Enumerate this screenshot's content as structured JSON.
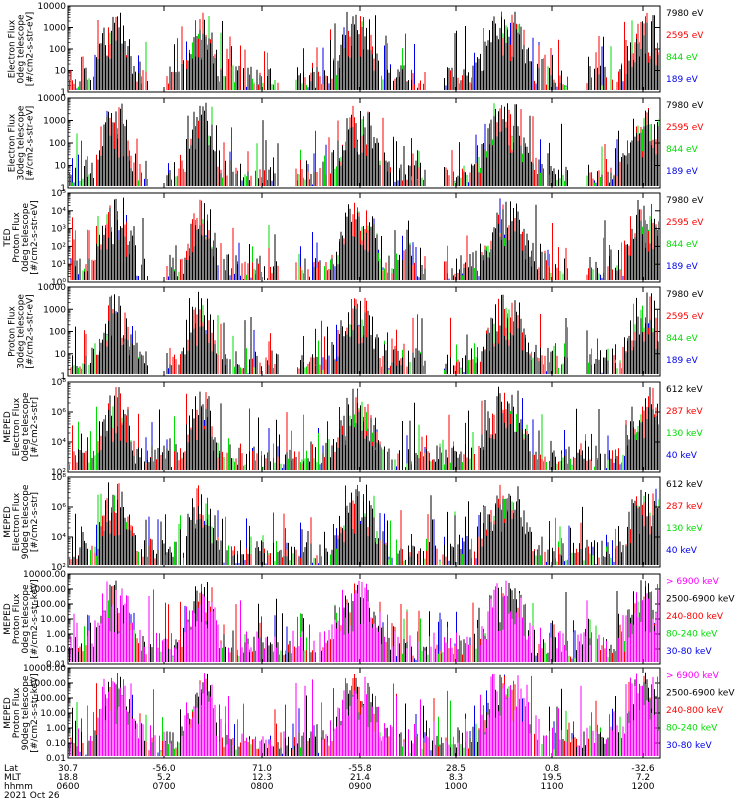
{
  "chart_data": [
    {
      "type": "line",
      "ylabel": [
        "Electron Flux",
        "0deg telescope",
        "[#/cm2-s-str-eV]"
      ],
      "ylog": [
        0,
        4
      ],
      "yticks": [
        "1",
        "10",
        "100",
        "1000",
        "10000"
      ],
      "legend": [
        {
          "label": "7980 eV",
          "color": "#000000"
        },
        {
          "label": "2595 eV",
          "color": "#ff0000"
        },
        {
          "label": "844 eV",
          "color": "#00dd00"
        },
        {
          "label": "189 eV",
          "color": "#0000ee"
        }
      ]
    },
    {
      "type": "line",
      "ylabel": [
        "Electron Flux",
        "30deg telescope",
        "[#/cm2-s-str-eV]"
      ],
      "ylog": [
        0,
        4
      ],
      "yticks": [
        "1",
        "10",
        "100",
        "1000",
        "10000"
      ],
      "legend": [
        {
          "label": "7980 eV",
          "color": "#000000"
        },
        {
          "label": "2595 eV",
          "color": "#ff0000"
        },
        {
          "label": "844 eV",
          "color": "#00dd00"
        },
        {
          "label": "189 eV",
          "color": "#0000ee"
        }
      ]
    },
    {
      "type": "line",
      "ylabel": [
        "TED",
        "Proton Flux",
        "0deg telescope",
        "[#/cm2-s-str-eV]"
      ],
      "ylog": [
        0,
        5
      ],
      "yticks": [
        "10⁰",
        "10¹",
        "10²",
        "10³",
        "10⁴",
        "10⁵"
      ],
      "legend": [
        {
          "label": "7980 eV",
          "color": "#000000"
        },
        {
          "label": "2595 eV",
          "color": "#ff0000"
        },
        {
          "label": "844 eV",
          "color": "#00dd00"
        },
        {
          "label": "189 eV",
          "color": "#0000ee"
        }
      ]
    },
    {
      "type": "line",
      "ylabel": [
        "Proton Flux",
        "30deg telescope",
        "[#/cm2-s-str-eV]"
      ],
      "ylog": [
        0,
        4
      ],
      "yticks": [
        "1",
        "10",
        "100",
        "1000",
        "10000"
      ],
      "legend": [
        {
          "label": "7980 eV",
          "color": "#000000"
        },
        {
          "label": "2595 eV",
          "color": "#ff0000"
        },
        {
          "label": "844 eV",
          "color": "#00dd00"
        },
        {
          "label": "189 eV",
          "color": "#0000ee"
        }
      ]
    },
    {
      "type": "line",
      "ylabel": [
        "MEPED",
        "Electron Flux",
        "0deg telescope",
        "[#/cm2-s-str]"
      ],
      "ylog": [
        2,
        8
      ],
      "yticks": [
        "10²",
        "10⁴",
        "10⁶",
        "10⁸"
      ],
      "legend": [
        {
          "label": "612 keV",
          "color": "#000000"
        },
        {
          "label": "287 keV",
          "color": "#ff0000"
        },
        {
          "label": "130 keV",
          "color": "#00dd00"
        },
        {
          "label": "40 keV",
          "color": "#0000ee"
        }
      ]
    },
    {
      "type": "line",
      "ylabel": [
        "MEPED",
        "Electron Flux",
        "90deg telescope",
        "[#/cm2-s-str]"
      ],
      "ylog": [
        2,
        8
      ],
      "yticks": [
        "10²",
        "10⁴",
        "10⁶",
        "10⁸"
      ],
      "legend": [
        {
          "label": "612 keV",
          "color": "#000000"
        },
        {
          "label": "287 keV",
          "color": "#ff0000"
        },
        {
          "label": "130 keV",
          "color": "#00dd00"
        },
        {
          "label": "40 keV",
          "color": "#0000ee"
        }
      ]
    },
    {
      "type": "line",
      "ylabel": [
        "MEPED",
        "Proton Flux",
        "0deg telescope",
        "[#/cm2-s-str-keV]"
      ],
      "ylog": [
        -2,
        4
      ],
      "yticks": [
        "0.01",
        "0.10",
        "1.00",
        "10.00",
        "100.00",
        "1000.00",
        "10000.00"
      ],
      "legend": [
        {
          "label": "> 6900 keV",
          "color": "#ff00ff"
        },
        {
          "label": "2500-6900 keV",
          "color": "#000000"
        },
        {
          "label": "240-800 keV",
          "color": "#ff0000"
        },
        {
          "label": "80-240 keV",
          "color": "#00dd00"
        },
        {
          "label": "30-80 keV",
          "color": "#0000ee"
        }
      ]
    },
    {
      "type": "line",
      "ylabel": [
        "MEPED",
        "Proton Flux",
        "90deg telescope",
        "[#/cm2-s-str-keV]"
      ],
      "ylog": [
        -2,
        4
      ],
      "yticks": [
        "0.01",
        "0.10",
        "1.00",
        "10.00",
        "100.00",
        "1000.00",
        "10000.00"
      ],
      "legend": [
        {
          "label": "> 6900 keV",
          "color": "#ff00ff"
        },
        {
          "label": "2500-6900 keV",
          "color": "#000000"
        },
        {
          "label": "240-800 keV",
          "color": "#ff0000"
        },
        {
          "label": "80-240 keV",
          "color": "#00dd00"
        },
        {
          "label": "30-80 keV",
          "color": "#0000ee"
        }
      ]
    }
  ],
  "xaxis": {
    "row_labels": [
      "Lat",
      "MLT",
      "hhmm",
      "2021 Oct 26"
    ],
    "ticks": [
      {
        "lat": "30.7",
        "mlt": "18.8",
        "hhmm": "0600"
      },
      {
        "lat": "-56.0",
        "mlt": "5.2",
        "hhmm": "0700"
      },
      {
        "lat": "71.0",
        "mlt": "12.3",
        "hhmm": "0800"
      },
      {
        "lat": "-55.8",
        "mlt": "21.4",
        "hhmm": "0900"
      },
      {
        "lat": "28.5",
        "mlt": "8.3",
        "hhmm": "1000"
      },
      {
        "lat": "0.8",
        "mlt": "19.5",
        "hhmm": "1100"
      },
      {
        "lat": "-32.6",
        "mlt": "7.2",
        "hhmm": "1200"
      }
    ]
  },
  "passes": [
    [
      0.08,
      0.025
    ],
    [
      0.225,
      0.022
    ],
    [
      0.49,
      0.03
    ],
    [
      0.74,
      0.034
    ],
    [
      0.975,
      0.028
    ]
  ]
}
